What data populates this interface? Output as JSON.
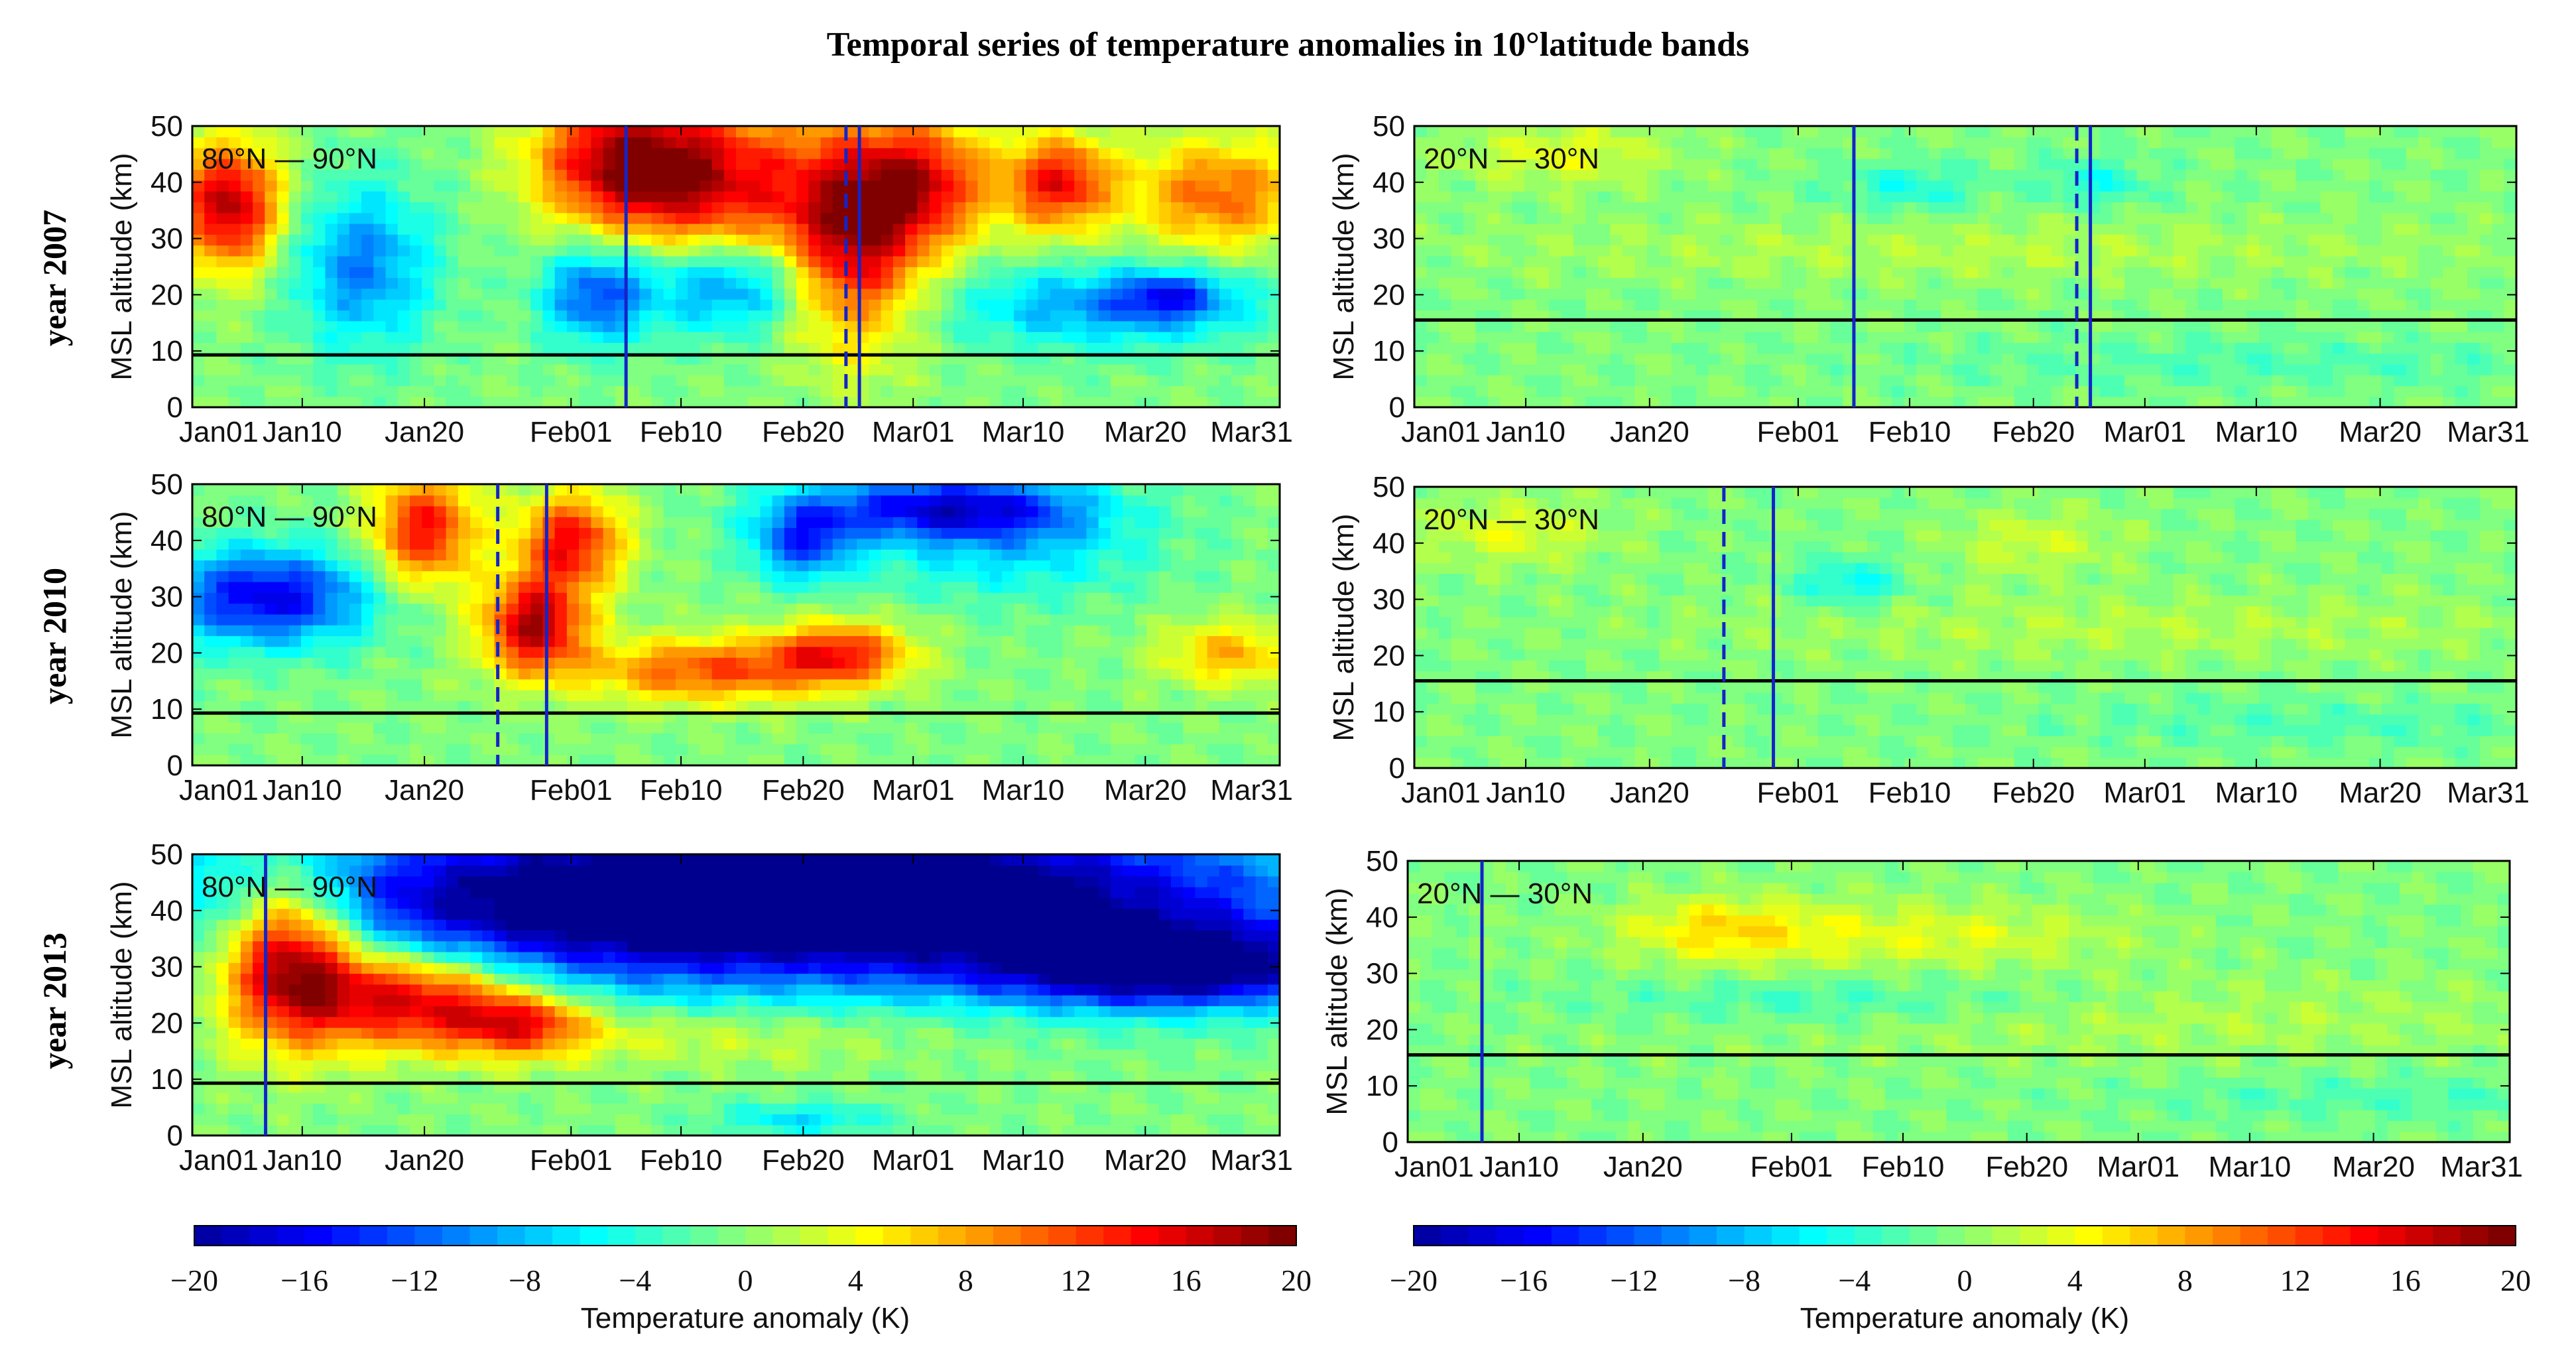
{
  "title": "Temporal series of temperature anomalies in 10°latitude bands",
  "row_labels": [
    "year 2007",
    "year 2010",
    "year 2013"
  ],
  "colors": {
    "colormap_jet": [
      "#00008f",
      "#0000ff",
      "#0080ff",
      "#00ffff",
      "#80ff80",
      "#ffff00",
      "#ff8000",
      "#ff0000",
      "#800000"
    ]
  },
  "chart_data": [
    {
      "type": "heatmap",
      "panel": "2007-polar",
      "band_label": "80°N — 90°N",
      "xlabel": "",
      "ylabel": "MSL altitude (km)",
      "ylim": [
        0,
        50
      ],
      "xlim": [
        0,
        89
      ],
      "yticks": [
        "0",
        "10",
        "20",
        "30",
        "40",
        "50"
      ],
      "xticks": [
        {
          "day": 0,
          "label": "Jan01"
        },
        {
          "day": 9,
          "label": "Jan10"
        },
        {
          "day": 19,
          "label": "Jan20"
        },
        {
          "day": 31,
          "label": "Feb01"
        },
        {
          "day": 40,
          "label": "Feb10"
        },
        {
          "day": 50,
          "label": "Feb20"
        },
        {
          "day": 59,
          "label": "Mar01"
        },
        {
          "day": 68,
          "label": "Mar10"
        },
        {
          "day": 78,
          "label": "Mar20"
        },
        {
          "day": 89,
          "label": "Mar31"
        }
      ],
      "tropopause_km": 9.3,
      "events": [
        {
          "day": 35.5,
          "style": "solid"
        },
        {
          "day": 53.5,
          "style": "dashed"
        },
        {
          "day": 54.6,
          "style": "solid"
        }
      ],
      "anomaly_blobs": [
        {
          "day": 3,
          "alt": 36,
          "sd": 3,
          "sa": 8,
          "amp": 18
        },
        {
          "day": 14,
          "alt": 25,
          "sd": 4,
          "sa": 10,
          "amp": -10
        },
        {
          "day": 35,
          "alt": 44,
          "sd": 5,
          "sa": 8,
          "amp": 16
        },
        {
          "day": 43,
          "alt": 40,
          "sd": 6,
          "sa": 10,
          "amp": 14
        },
        {
          "day": 33,
          "alt": 20,
          "sd": 3,
          "sa": 6,
          "amp": -12
        },
        {
          "day": 44,
          "alt": 22,
          "sd": 5,
          "sa": 6,
          "amp": -11
        },
        {
          "day": 54,
          "alt": 30,
          "sd": 4,
          "sa": 13,
          "amp": 17
        },
        {
          "day": 60,
          "alt": 40,
          "sd": 4,
          "sa": 8,
          "amp": 14
        },
        {
          "day": 71,
          "alt": 40,
          "sd": 3,
          "sa": 6,
          "amp": 15
        },
        {
          "day": 84,
          "alt": 38,
          "sd": 5,
          "sa": 7,
          "amp": 11
        },
        {
          "day": 75,
          "alt": 18,
          "sd": 9,
          "sa": 5,
          "amp": -9
        },
        {
          "day": 80,
          "alt": 20,
          "sd": 3,
          "sa": 3,
          "amp": -9
        }
      ]
    },
    {
      "type": "heatmap",
      "panel": "2007-subtropical",
      "band_label": "20°N — 30°N",
      "xlabel": "",
      "ylabel": "MSL altitude (km)",
      "ylim": [
        0,
        50
      ],
      "xlim": [
        0,
        89
      ],
      "yticks": [
        "0",
        "10",
        "20",
        "30",
        "40",
        "50"
      ],
      "xticks": [
        {
          "day": 0,
          "label": "Jan01"
        },
        {
          "day": 9,
          "label": "Jan10"
        },
        {
          "day": 19,
          "label": "Jan20"
        },
        {
          "day": 31,
          "label": "Feb01"
        },
        {
          "day": 40,
          "label": "Feb10"
        },
        {
          "day": 50,
          "label": "Feb20"
        },
        {
          "day": 59,
          "label": "Mar01"
        },
        {
          "day": 68,
          "label": "Mar10"
        },
        {
          "day": 78,
          "label": "Mar20"
        },
        {
          "day": 89,
          "label": "Mar31"
        }
      ],
      "tropopause_km": 15.5,
      "events": [
        {
          "day": 35.5,
          "style": "solid"
        },
        {
          "day": 53.5,
          "style": "dashed"
        },
        {
          "day": 54.6,
          "style": "solid"
        }
      ],
      "anomaly_blobs": [
        {
          "day": 12,
          "alt": 45,
          "sd": 6,
          "sa": 4,
          "amp": 4
        },
        {
          "day": 40,
          "alt": 39,
          "sd": 4,
          "sa": 3,
          "amp": -4
        },
        {
          "day": 55,
          "alt": 40,
          "sd": 3,
          "sa": 3,
          "amp": -4
        },
        {
          "day": 45,
          "alt": 28,
          "sd": 30,
          "sa": 4,
          "amp": 2
        },
        {
          "day": 70,
          "alt": 8,
          "sd": 20,
          "sa": 3,
          "amp": -2
        }
      ]
    },
    {
      "type": "heatmap",
      "panel": "2010-polar",
      "band_label": "80°N — 90°N",
      "xlabel": "",
      "ylabel": "MSL altitude (km)",
      "ylim": [
        0,
        50
      ],
      "xlim": [
        0,
        89
      ],
      "yticks": [
        "0",
        "10",
        "20",
        "30",
        "40",
        "50"
      ],
      "xticks": [
        {
          "day": 0,
          "label": "Jan01"
        },
        {
          "day": 9,
          "label": "Jan10"
        },
        {
          "day": 19,
          "label": "Jan20"
        },
        {
          "day": 31,
          "label": "Feb01"
        },
        {
          "day": 40,
          "label": "Feb10"
        },
        {
          "day": 50,
          "label": "Feb20"
        },
        {
          "day": 59,
          "label": "Mar01"
        },
        {
          "day": 68,
          "label": "Mar10"
        },
        {
          "day": 78,
          "label": "Mar20"
        },
        {
          "day": 89,
          "label": "Mar31"
        }
      ],
      "tropopause_km": 9.3,
      "events": [
        {
          "day": 25,
          "style": "dashed"
        },
        {
          "day": 29,
          "style": "solid"
        }
      ],
      "anomaly_blobs": [
        {
          "day": 6,
          "alt": 30,
          "sd": 6,
          "sa": 6,
          "amp": -16
        },
        {
          "day": 19,
          "alt": 42,
          "sd": 3,
          "sa": 7,
          "amp": 15
        },
        {
          "day": 28,
          "alt": 25,
          "sd": 3,
          "sa": 6,
          "amp": 18
        },
        {
          "day": 31,
          "alt": 40,
          "sd": 3,
          "sa": 6,
          "amp": 15
        },
        {
          "day": 42,
          "alt": 17,
          "sd": 7,
          "sa": 4,
          "amp": 12
        },
        {
          "day": 53,
          "alt": 20,
          "sd": 4,
          "sa": 4,
          "amp": 13
        },
        {
          "day": 62,
          "alt": 46,
          "sd": 8,
          "sa": 4,
          "amp": -16
        },
        {
          "day": 50,
          "alt": 40,
          "sd": 3,
          "sa": 5,
          "amp": -12
        },
        {
          "day": 85,
          "alt": 20,
          "sd": 4,
          "sa": 4,
          "amp": 8
        },
        {
          "day": 67,
          "alt": 38,
          "sd": 8,
          "sa": 6,
          "amp": -6
        }
      ]
    },
    {
      "type": "heatmap",
      "panel": "2010-subtropical",
      "band_label": "20°N — 30°N",
      "xlabel": "",
      "ylabel": "MSL altitude (km)",
      "ylim": [
        0,
        50
      ],
      "xlim": [
        0,
        89
      ],
      "yticks": [
        "0",
        "10",
        "20",
        "30",
        "40",
        "50"
      ],
      "xticks": [
        {
          "day": 0,
          "label": "Jan01"
        },
        {
          "day": 9,
          "label": "Jan10"
        },
        {
          "day": 19,
          "label": "Jan20"
        },
        {
          "day": 31,
          "label": "Feb01"
        },
        {
          "day": 40,
          "label": "Feb10"
        },
        {
          "day": 50,
          "label": "Feb20"
        },
        {
          "day": 59,
          "label": "Mar01"
        },
        {
          "day": 68,
          "label": "Mar10"
        },
        {
          "day": 78,
          "label": "Mar20"
        },
        {
          "day": 89,
          "label": "Mar31"
        }
      ],
      "tropopause_km": 15.5,
      "events": [
        {
          "day": 25,
          "style": "dashed"
        },
        {
          "day": 29,
          "style": "solid"
        }
      ],
      "anomaly_blobs": [
        {
          "day": 8,
          "alt": 42,
          "sd": 5,
          "sa": 4,
          "amp": 4
        },
        {
          "day": 35,
          "alt": 33,
          "sd": 3,
          "sa": 3,
          "amp": -5
        },
        {
          "day": 50,
          "alt": 40,
          "sd": 5,
          "sa": 4,
          "amp": 3
        },
        {
          "day": 60,
          "alt": 25,
          "sd": 25,
          "sa": 4,
          "amp": 2
        },
        {
          "day": 75,
          "alt": 8,
          "sd": 15,
          "sa": 3,
          "amp": -2
        }
      ]
    },
    {
      "type": "heatmap",
      "panel": "2013-polar",
      "band_label": "80°N — 90°N",
      "xlabel": "",
      "ylabel": "MSL altitude (km)",
      "ylim": [
        0,
        50
      ],
      "xlim": [
        0,
        89
      ],
      "yticks": [
        "0",
        "10",
        "20",
        "30",
        "40",
        "50"
      ],
      "xticks": [
        {
          "day": 0,
          "label": "Jan01"
        },
        {
          "day": 9,
          "label": "Jan10"
        },
        {
          "day": 19,
          "label": "Jan20"
        },
        {
          "day": 31,
          "label": "Feb01"
        },
        {
          "day": 40,
          "label": "Feb10"
        },
        {
          "day": 50,
          "label": "Feb20"
        },
        {
          "day": 59,
          "label": "Mar01"
        },
        {
          "day": 68,
          "label": "Mar10"
        },
        {
          "day": 78,
          "label": "Mar20"
        },
        {
          "day": 89,
          "label": "Mar31"
        }
      ],
      "tropopause_km": 9.3,
      "events": [
        {
          "day": 6,
          "style": "solid"
        }
      ],
      "anomaly_blobs": [
        {
          "day": 8,
          "alt": 32,
          "sd": 4,
          "sa": 10,
          "amp": 22
        },
        {
          "day": 18,
          "alt": 25,
          "sd": 6,
          "sa": 6,
          "amp": 18
        },
        {
          "day": 27,
          "alt": 20,
          "sd": 4,
          "sa": 4,
          "amp": 12
        },
        {
          "day": 48,
          "alt": 42,
          "sd": 28,
          "sa": 10,
          "amp": -30
        },
        {
          "day": 80,
          "alt": 30,
          "sd": 10,
          "sa": 5,
          "amp": -20
        },
        {
          "day": 40,
          "alt": 18,
          "sd": 15,
          "sa": 4,
          "amp": 4
        },
        {
          "day": 50,
          "alt": 3,
          "sd": 5,
          "sa": 2,
          "amp": -6
        }
      ]
    },
    {
      "type": "heatmap",
      "panel": "2013-subtropical",
      "band_label": "20°N — 30°N",
      "xlabel": "",
      "ylabel": "MSL altitude (km)",
      "ylim": [
        0,
        50
      ],
      "xlim": [
        0,
        89
      ],
      "yticks": [
        "0",
        "10",
        "20",
        "30",
        "40",
        "50"
      ],
      "xticks": [
        {
          "day": 0,
          "label": "Jan01"
        },
        {
          "day": 9,
          "label": "Jan10"
        },
        {
          "day": 19,
          "label": "Jan20"
        },
        {
          "day": 31,
          "label": "Feb01"
        },
        {
          "day": 40,
          "label": "Feb10"
        },
        {
          "day": 50,
          "label": "Feb20"
        },
        {
          "day": 59,
          "label": "Mar01"
        },
        {
          "day": 68,
          "label": "Mar10"
        },
        {
          "day": 78,
          "label": "Mar20"
        },
        {
          "day": 89,
          "label": "Mar31"
        }
      ],
      "tropopause_km": 15.5,
      "events": [
        {
          "day": 6,
          "style": "solid"
        }
      ],
      "anomaly_blobs": [
        {
          "day": 25,
          "alt": 38,
          "sd": 5,
          "sa": 4,
          "amp": 5
        },
        {
          "day": 40,
          "alt": 37,
          "sd": 12,
          "sa": 4,
          "amp": 4
        },
        {
          "day": 60,
          "alt": 22,
          "sd": 25,
          "sa": 5,
          "amp": 2
        },
        {
          "day": 35,
          "alt": 25,
          "sd": 15,
          "sa": 3,
          "amp": -3
        },
        {
          "day": 80,
          "alt": 8,
          "sd": 15,
          "sa": 3,
          "amp": -2
        }
      ]
    },
    {
      "type": "colorbar",
      "panel": "colorbar-left",
      "label": "Temperature anomaly (K)",
      "range": [
        -20,
        20
      ],
      "ticks": [
        "−20",
        "−16",
        "−12",
        "−8",
        "−4",
        "0",
        "4",
        "8",
        "12",
        "16",
        "20"
      ]
    },
    {
      "type": "colorbar",
      "panel": "colorbar-right",
      "label": "Temperature anomaly (K)",
      "range": [
        -20,
        20
      ],
      "ticks": [
        "−20",
        "−16",
        "−12",
        "−8",
        "−4",
        "0",
        "4",
        "8",
        "12",
        "16",
        "20"
      ]
    }
  ]
}
